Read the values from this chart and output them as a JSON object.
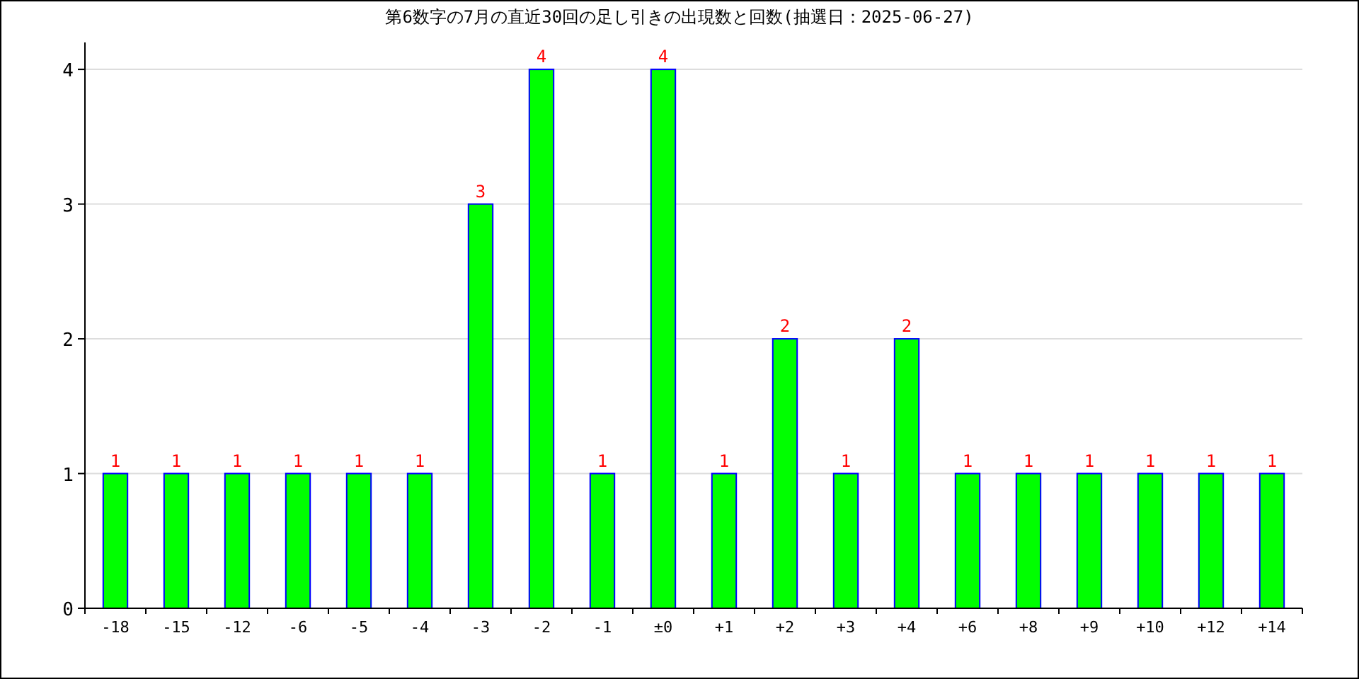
{
  "chart_data": {
    "type": "bar",
    "title": "第6数字の7月の直近30回の足し引きの出現数と回数(抽選日：2025-06-27)",
    "categories": [
      "-18",
      "-15",
      "-12",
      "-6",
      "-5",
      "-4",
      "-3",
      "-2",
      "-1",
      "±0",
      "+1",
      "+2",
      "+3",
      "+4",
      "+6",
      "+8",
      "+9",
      "+10",
      "+12",
      "+14"
    ],
    "values": [
      1,
      1,
      1,
      1,
      1,
      1,
      3,
      4,
      1,
      4,
      1,
      2,
      1,
      2,
      1,
      1,
      1,
      1,
      1,
      1
    ],
    "color": "#00ff00",
    "ylim": [
      0,
      4.2
    ],
    "yticks": [
      0,
      1,
      2,
      3,
      4
    ],
    "grid": "y",
    "data_labels": true
  }
}
